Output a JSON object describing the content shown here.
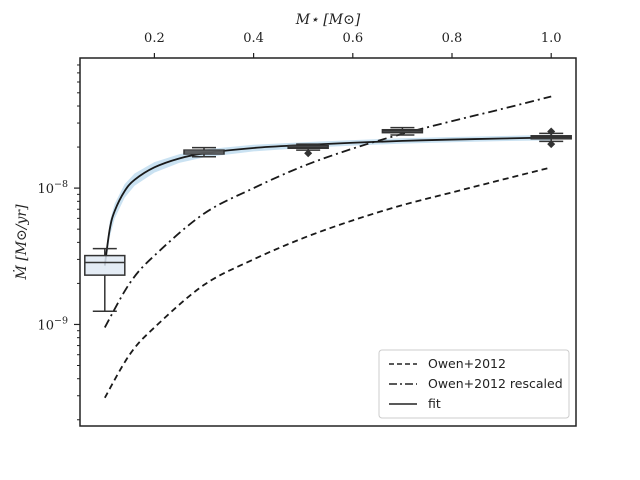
{
  "chart_data": {
    "type": "line",
    "xlabel": "M⋆ [M⊙]",
    "ylabel": "Ṁ [M⊙/yr]",
    "xlim": [
      0.05,
      1.05
    ],
    "ylim": [
      1.8e-10,
      9e-08
    ],
    "yscale": "log",
    "x_axis_position": "top",
    "grid": false,
    "x_ticks": [
      0.2,
      0.4,
      0.6,
      0.8,
      1.0
    ],
    "x_tick_labels": [
      "0.2",
      "0.4",
      "0.6",
      "0.8",
      "1.0"
    ],
    "y_ticks": [
      1e-09,
      1e-08
    ],
    "y_tick_labels": [
      {
        "base": "10",
        "exp": "−9"
      },
      {
        "base": "10",
        "exp": "−8"
      }
    ],
    "legend": {
      "placement": "lower-right",
      "entries": [
        {
          "label": "Owen+2012",
          "style": "dashed"
        },
        {
          "label": "Owen+2012 rescaled",
          "style": "dashdot"
        },
        {
          "label": "fit",
          "style": "solid"
        }
      ]
    },
    "series": [
      {
        "name": "Owen+2012",
        "style": "dashed",
        "x": [
          0.1,
          0.15,
          0.2,
          0.3,
          0.4,
          0.5,
          0.6,
          0.7,
          0.8,
          0.9,
          1.0
        ],
        "y": [
          2.9e-10,
          6e-10,
          9.5e-10,
          1.95e-09,
          3e-09,
          4.3e-09,
          5.8e-09,
          7.5e-09,
          9.3e-09,
          1.15e-08,
          1.42e-08
        ]
      },
      {
        "name": "Owen+2012 rescaled",
        "style": "dashdot",
        "x": [
          0.1,
          0.15,
          0.2,
          0.3,
          0.4,
          0.5,
          0.6,
          0.7,
          0.8,
          0.9,
          1.0
        ],
        "y": [
          9.5e-10,
          2e-09,
          3.2e-09,
          6.5e-09,
          1e-08,
          1.45e-08,
          1.95e-08,
          2.5e-08,
          3.1e-08,
          3.8e-08,
          4.7e-08
        ]
      },
      {
        "name": "fit",
        "style": "solid",
        "x": [
          0.1,
          0.11,
          0.12,
          0.14,
          0.16,
          0.2,
          0.25,
          0.3,
          0.4,
          0.5,
          0.6,
          0.7,
          0.8,
          0.9,
          1.0
        ],
        "y": [
          2.7e-09,
          5e-09,
          6.8e-09,
          9.5e-09,
          1.15e-08,
          1.42e-08,
          1.65e-08,
          1.8e-08,
          1.97e-08,
          2.07e-08,
          2.15e-08,
          2.22e-08,
          2.27e-08,
          2.31e-08,
          2.35e-08
        ],
        "band_lower": [
          2.45e-09,
          4.4e-09,
          6e-09,
          8.5e-09,
          1.04e-08,
          1.3e-08,
          1.53e-08,
          1.68e-08,
          1.86e-08,
          1.97e-08,
          2.05e-08,
          2.12e-08,
          2.17e-08,
          2.21e-08,
          2.24e-08
        ],
        "band_upper": [
          2.95e-09,
          5.7e-09,
          7.7e-09,
          1.07e-08,
          1.28e-08,
          1.55e-08,
          1.77e-08,
          1.92e-08,
          2.08e-08,
          2.17e-08,
          2.25e-08,
          2.32e-08,
          2.37e-08,
          2.41e-08,
          2.46e-08
        ]
      }
    ],
    "boxplots": [
      {
        "x": 0.1,
        "whisker_low": 1.25e-09,
        "q1": 2.3e-09,
        "median": 2.85e-09,
        "q3": 3.2e-09,
        "whisker_high": 3.6e-09,
        "outliers": []
      },
      {
        "x": 0.3,
        "whisker_low": 1.7e-08,
        "q1": 1.78e-08,
        "median": 1.84e-08,
        "q3": 1.9e-08,
        "whisker_high": 1.98e-08,
        "outliers": []
      },
      {
        "x": 0.51,
        "whisker_low": 1.9e-08,
        "q1": 1.96e-08,
        "median": 2e-08,
        "q3": 2.05e-08,
        "whisker_high": 2.1e-08,
        "outliers": [
          1.8e-08
        ]
      },
      {
        "x": 0.7,
        "whisker_low": 2.45e-08,
        "q1": 2.55e-08,
        "median": 2.62e-08,
        "q3": 2.68e-08,
        "whisker_high": 2.78e-08,
        "outliers": []
      },
      {
        "x": 1.0,
        "whisker_low": 2.2e-08,
        "q1": 2.3e-08,
        "median": 2.36e-08,
        "q3": 2.42e-08,
        "whisker_high": 2.52e-08,
        "outliers": [
          2.1e-08,
          2.6e-08
        ]
      }
    ]
  }
}
